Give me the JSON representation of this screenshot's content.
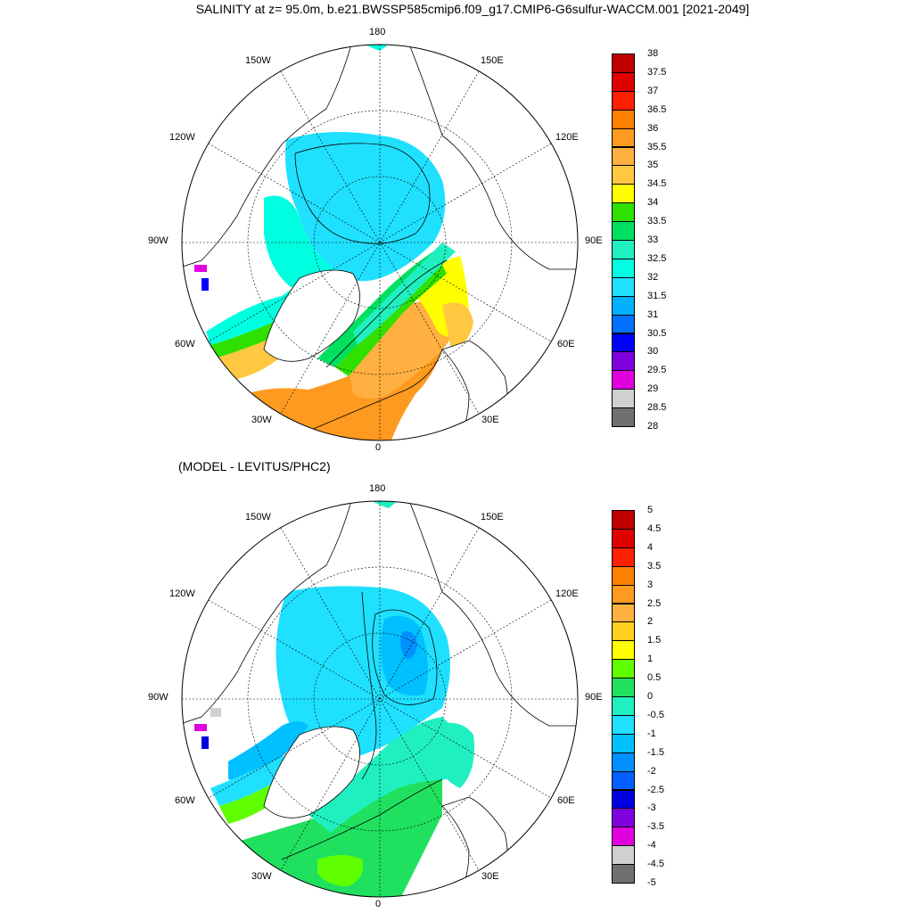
{
  "title": "SALINITY at z=  95.0m, b.e21.BWSSP585cmip6.f09_g17.CMIP6-G6sulfur-WACCM.001 [2021-2049]",
  "diff_title": "(MODEL - LEVITUS/PHC2)",
  "lon_labels": [
    "180",
    "150E",
    "120E",
    "90E",
    "60E",
    "30E",
    "0",
    "30W",
    "60W",
    "90W",
    "120W",
    "150W"
  ],
  "chart_data": [
    {
      "type": "heatmap",
      "projection": "north-polar-stereographic",
      "title": "SALINITY at z=  95.0m, b.e21.BWSSP585cmip6.f09_g17.CMIP6-G6sulfur-WACCM.001 [2021-2049]",
      "colorbar": {
        "ticks": [
          "38",
          "37.5",
          "37",
          "36.5",
          "36",
          "35.5",
          "35",
          "34.5",
          "34",
          "33.5",
          "33",
          "32.5",
          "32",
          "31.5",
          "31",
          "30.5",
          "30",
          "29.5",
          "29",
          "28.5",
          "28"
        ],
        "colors": [
          "#c00000",
          "#e00000",
          "#ff2000",
          "#ff8000",
          "#ff9a20",
          "#ffb040",
          "#ffc840",
          "#ffff00",
          "#30e000",
          "#00e060",
          "#20f0c0",
          "#00ffe0",
          "#20e0ff",
          "#00b0ff",
          "#0070ff",
          "#0000ff",
          "#8000e0",
          "#e000e0",
          "#d0d0d0",
          "#707070"
        ]
      }
    },
    {
      "type": "heatmap",
      "projection": "north-polar-stereographic",
      "title": "(MODEL - LEVITUS/PHC2)",
      "colorbar": {
        "ticks": [
          "5",
          "4.5",
          "4",
          "3.5",
          "3",
          "2.5",
          "2",
          "1.5",
          "1",
          "0.5",
          "0",
          "-0.5",
          "-1",
          "-1.5",
          "-2",
          "-2.5",
          "-3",
          "-3.5",
          "-4",
          "-4.5",
          "-5"
        ],
        "colors": [
          "#c00000",
          "#e00000",
          "#ff2000",
          "#ff8000",
          "#ff9a20",
          "#ffb040",
          "#ffd020",
          "#ffff00",
          "#60ff00",
          "#20e060",
          "#20f0c0",
          "#20e0ff",
          "#00c0ff",
          "#0090ff",
          "#0060ff",
          "#0000e0",
          "#8000e0",
          "#e000e0",
          "#d0d0d0",
          "#707070"
        ]
      }
    }
  ],
  "colors": {
    "land": "#ffffff",
    "coast": "#000000",
    "grid": "#000000"
  }
}
